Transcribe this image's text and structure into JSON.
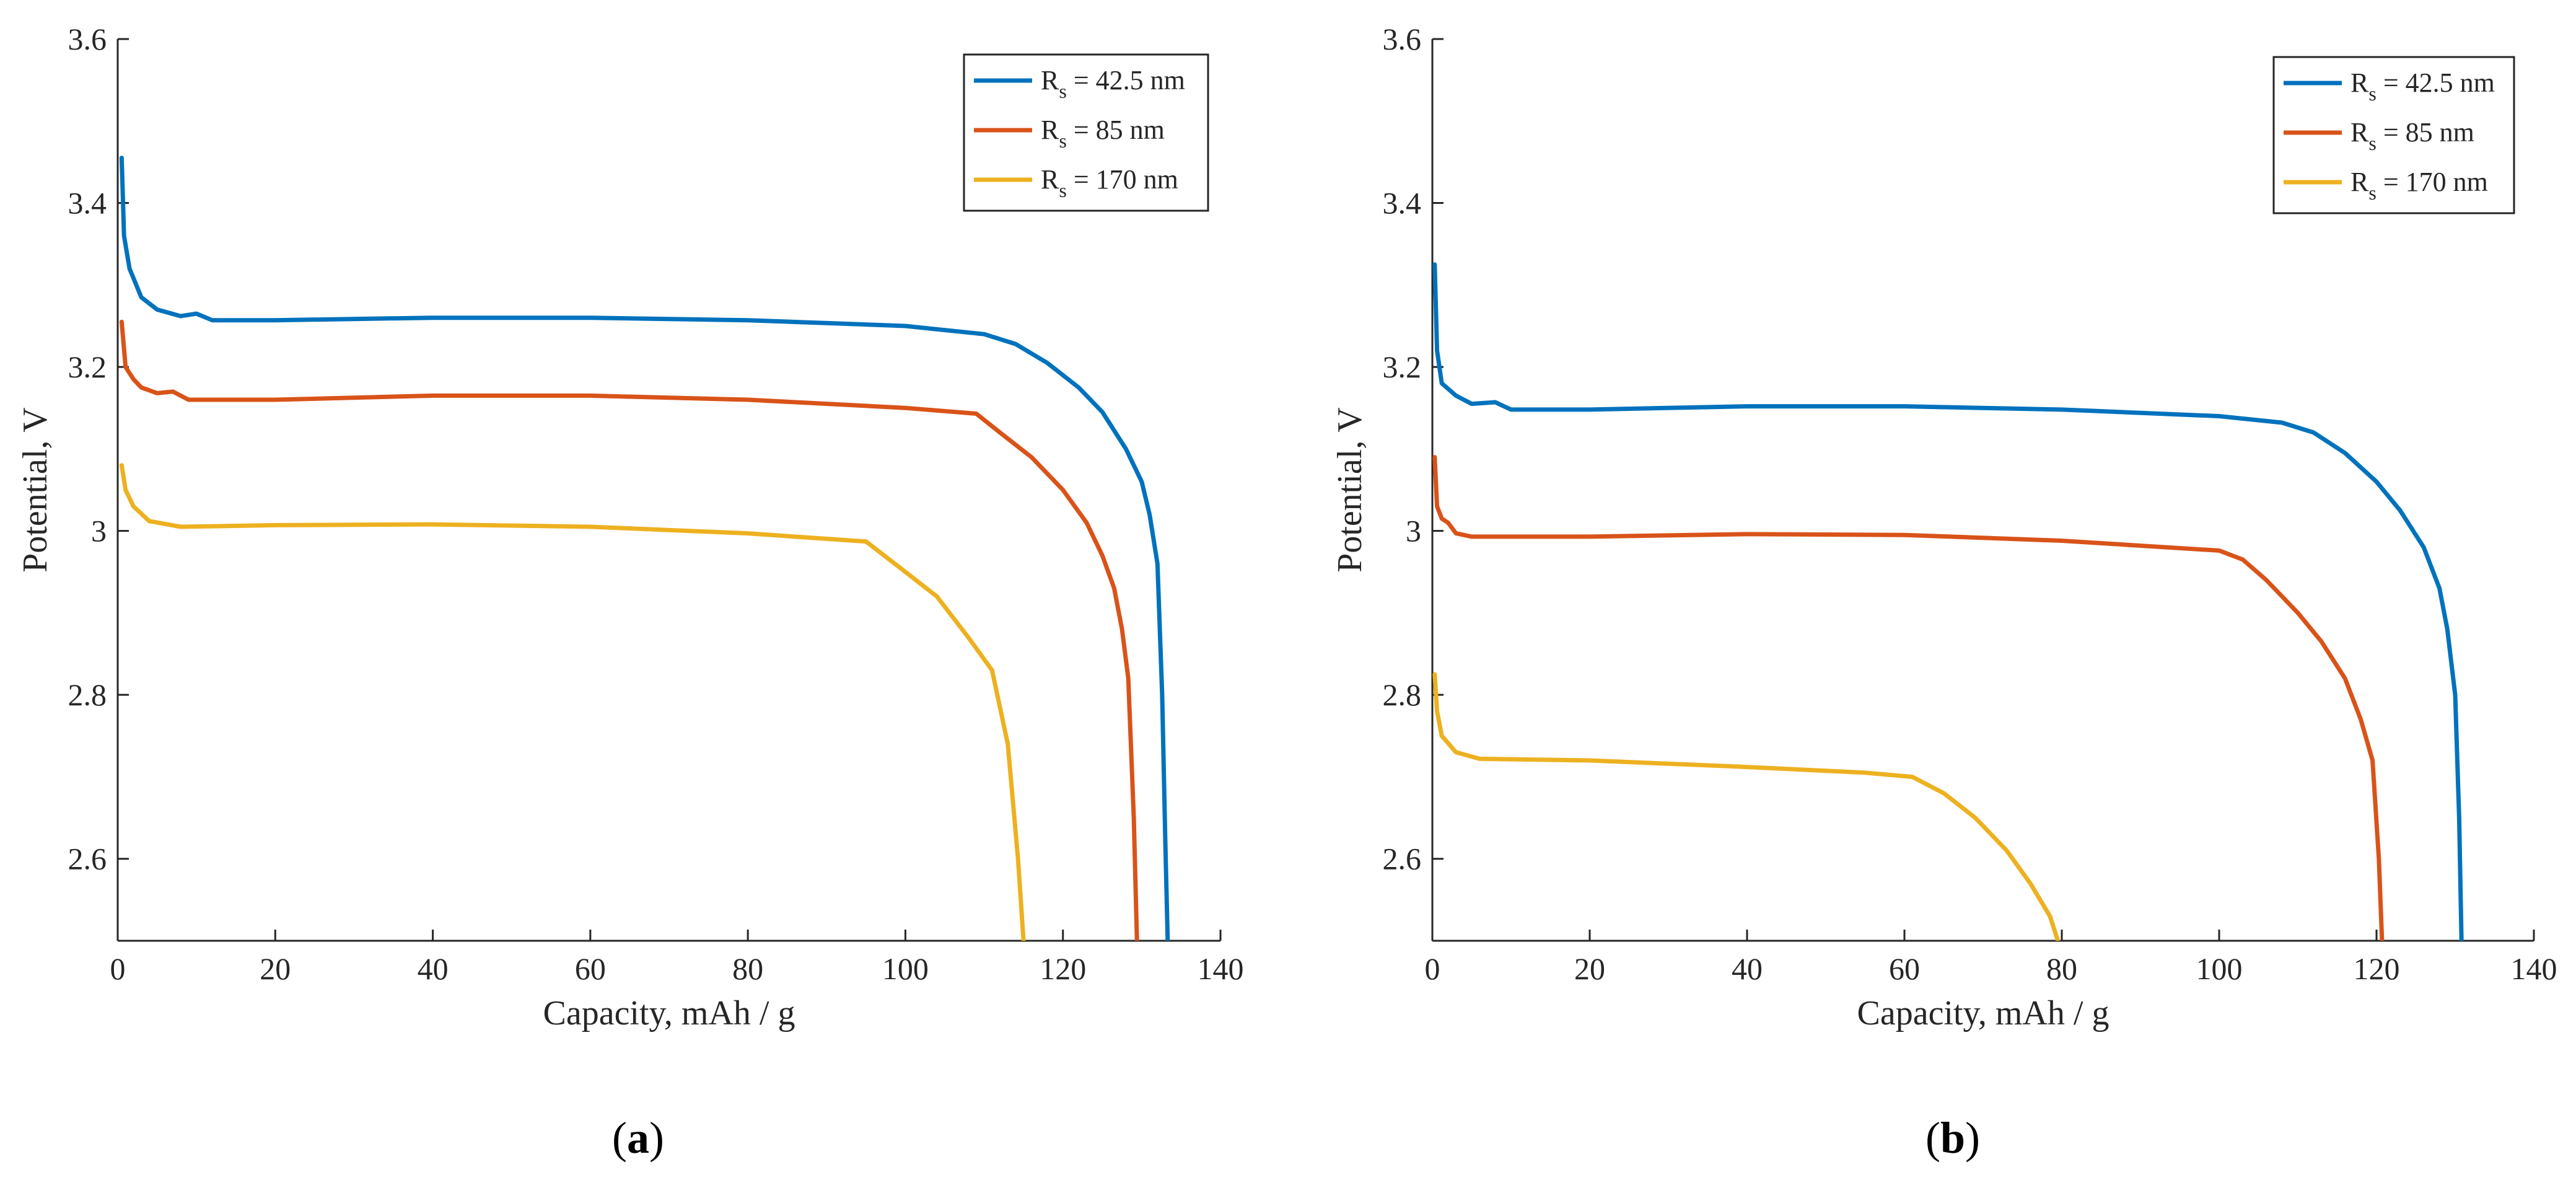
{
  "chart_data": [
    {
      "type": "line",
      "panel": "a",
      "panel_label_open": "(",
      "panel_label_letter": "a",
      "panel_label_close": ")",
      "xlabel": "Capacity, mAh / g",
      "ylabel": "Potential, V",
      "xlim": [
        0,
        140
      ],
      "ylim": [
        2.5,
        3.6
      ],
      "xticks": [
        0,
        20,
        40,
        60,
        80,
        100,
        120,
        140
      ],
      "xtick_labels": [
        "0",
        "20",
        "40",
        "60",
        "80",
        "100",
        "120",
        "140"
      ],
      "yticks": [
        2.6,
        2.8,
        3.0,
        3.2,
        3.4,
        3.6
      ],
      "ytick_labels": [
        "2.6",
        "2.8",
        "3",
        "3.2",
        "3.4",
        "3.6"
      ],
      "grid": false,
      "legend_position": "top-right",
      "series": [
        {
          "name": "Rs = 42.5 nm",
          "legend_main": "R",
          "legend_sub": "s",
          "legend_rest": " = 42.5 nm",
          "color": "#0072BD",
          "points": [
            [
              0.5,
              3.455
            ],
            [
              0.8,
              3.36
            ],
            [
              1.5,
              3.32
            ],
            [
              3,
              3.285
            ],
            [
              5,
              3.27
            ],
            [
              8,
              3.262
            ],
            [
              10,
              3.265
            ],
            [
              12,
              3.257
            ],
            [
              20,
              3.257
            ],
            [
              40,
              3.26
            ],
            [
              60,
              3.26
            ],
            [
              80,
              3.257
            ],
            [
              100,
              3.25
            ],
            [
              110,
              3.24
            ],
            [
              114,
              3.228
            ],
            [
              118,
              3.205
            ],
            [
              122,
              3.175
            ],
            [
              125,
              3.145
            ],
            [
              128,
              3.1
            ],
            [
              130,
              3.06
            ],
            [
              131,
              3.02
            ],
            [
              132,
              2.96
            ],
            [
              132.6,
              2.8
            ],
            [
              133,
              2.62
            ],
            [
              133.3,
              2.5
            ]
          ]
        },
        {
          "name": "Rs = 85 nm",
          "legend_main": "R",
          "legend_sub": "s",
          "legend_rest": " = 85 nm",
          "color": "#D95319",
          "points": [
            [
              0.5,
              3.255
            ],
            [
              1,
              3.2
            ],
            [
              2,
              3.185
            ],
            [
              3,
              3.175
            ],
            [
              5,
              3.168
            ],
            [
              7,
              3.17
            ],
            [
              9,
              3.16
            ],
            [
              20,
              3.16
            ],
            [
              40,
              3.165
            ],
            [
              60,
              3.165
            ],
            [
              80,
              3.16
            ],
            [
              100,
              3.15
            ],
            [
              109,
              3.143
            ],
            [
              112,
              3.12
            ],
            [
              116,
              3.09
            ],
            [
              120,
              3.05
            ],
            [
              123,
              3.01
            ],
            [
              125,
              2.97
            ],
            [
              126.5,
              2.93
            ],
            [
              127.5,
              2.88
            ],
            [
              128.3,
              2.82
            ],
            [
              129,
              2.65
            ],
            [
              129.4,
              2.5
            ]
          ]
        },
        {
          "name": "Rs = 170 nm",
          "legend_main": "R",
          "legend_sub": "s",
          "legend_rest": " = 170 nm",
          "color": "#EDB120",
          "points": [
            [
              0.5,
              3.08
            ],
            [
              1,
              3.05
            ],
            [
              2,
              3.03
            ],
            [
              4,
              3.012
            ],
            [
              8,
              3.005
            ],
            [
              20,
              3.007
            ],
            [
              40,
              3.008
            ],
            [
              60,
              3.005
            ],
            [
              80,
              2.997
            ],
            [
              95,
              2.987
            ],
            [
              100,
              2.95
            ],
            [
              104,
              2.92
            ],
            [
              108,
              2.87
            ],
            [
              111,
              2.83
            ],
            [
              113,
              2.74
            ],
            [
              114.3,
              2.6
            ],
            [
              115,
              2.5
            ]
          ]
        }
      ]
    },
    {
      "type": "line",
      "panel": "b",
      "panel_label_open": "(",
      "panel_label_letter": "b",
      "panel_label_close": ")",
      "xlabel": "Capacity, mAh / g",
      "ylabel": "Potential, V",
      "xlim": [
        0,
        140
      ],
      "ylim": [
        2.5,
        3.6
      ],
      "xticks": [
        0,
        20,
        40,
        60,
        80,
        100,
        120,
        140
      ],
      "xtick_labels": [
        "0",
        "20",
        "40",
        "60",
        "80",
        "100",
        "120",
        "140"
      ],
      "yticks": [
        2.6,
        2.8,
        3.0,
        3.2,
        3.4,
        3.6
      ],
      "ytick_labels": [
        "2.6",
        "2.8",
        "3",
        "3.2",
        "3.4",
        "3.6"
      ],
      "grid": false,
      "legend_position": "top-right",
      "series": [
        {
          "name": "Rs = 42.5 nm",
          "legend_main": "R",
          "legend_sub": "s",
          "legend_rest": " = 42.5 nm",
          "color": "#0072BD",
          "points": [
            [
              0.3,
              3.325
            ],
            [
              0.6,
              3.22
            ],
            [
              1.2,
              3.18
            ],
            [
              3,
              3.165
            ],
            [
              5,
              3.155
            ],
            [
              8,
              3.157
            ],
            [
              10,
              3.148
            ],
            [
              20,
              3.148
            ],
            [
              40,
              3.152
            ],
            [
              60,
              3.152
            ],
            [
              80,
              3.148
            ],
            [
              100,
              3.14
            ],
            [
              108,
              3.132
            ],
            [
              112,
              3.12
            ],
            [
              116,
              3.095
            ],
            [
              120,
              3.06
            ],
            [
              123,
              3.025
            ],
            [
              126,
              2.98
            ],
            [
              128,
              2.93
            ],
            [
              129,
              2.88
            ],
            [
              130,
              2.8
            ],
            [
              130.5,
              2.65
            ],
            [
              130.8,
              2.5
            ]
          ]
        },
        {
          "name": "Rs = 85 nm",
          "legend_main": "R",
          "legend_sub": "s",
          "legend_rest": " = 85 nm",
          "color": "#D95319",
          "points": [
            [
              0.3,
              3.09
            ],
            [
              0.6,
              3.03
            ],
            [
              1.2,
              3.015
            ],
            [
              2,
              3.01
            ],
            [
              3,
              2.997
            ],
            [
              5,
              2.993
            ],
            [
              20,
              2.993
            ],
            [
              40,
              2.996
            ],
            [
              60,
              2.995
            ],
            [
              80,
              2.988
            ],
            [
              100,
              2.976
            ],
            [
              103,
              2.965
            ],
            [
              106,
              2.94
            ],
            [
              110,
              2.9
            ],
            [
              113,
              2.865
            ],
            [
              116,
              2.82
            ],
            [
              118,
              2.77
            ],
            [
              119.5,
              2.72
            ],
            [
              120.3,
              2.6
            ],
            [
              120.7,
              2.5
            ]
          ]
        },
        {
          "name": "Rs = 170 nm",
          "legend_main": "R",
          "legend_sub": "s",
          "legend_rest": " = 170 nm",
          "color": "#EDB120",
          "points": [
            [
              0.3,
              2.825
            ],
            [
              0.6,
              2.78
            ],
            [
              1.2,
              2.75
            ],
            [
              3,
              2.73
            ],
            [
              6,
              2.722
            ],
            [
              20,
              2.72
            ],
            [
              40,
              2.712
            ],
            [
              55,
              2.705
            ],
            [
              61,
              2.7
            ],
            [
              65,
              2.68
            ],
            [
              69,
              2.65
            ],
            [
              73,
              2.61
            ],
            [
              76,
              2.57
            ],
            [
              78.5,
              2.53
            ],
            [
              79.5,
              2.5
            ]
          ]
        }
      ]
    }
  ]
}
